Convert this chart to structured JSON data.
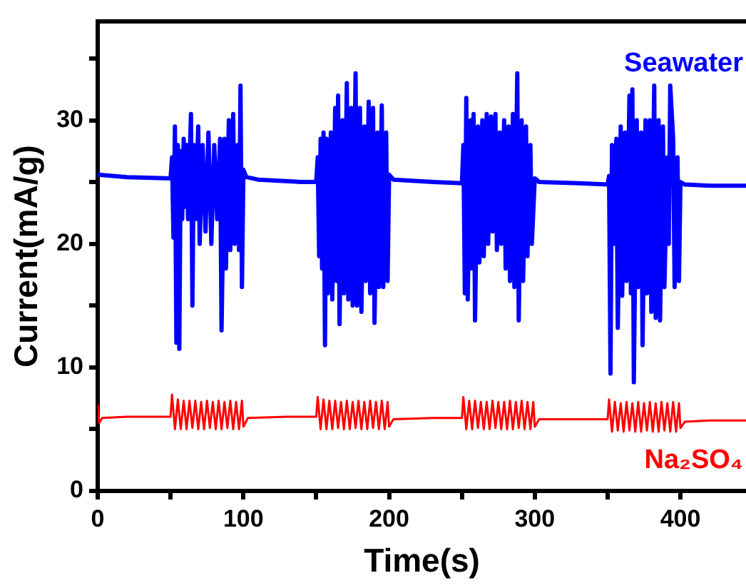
{
  "chart_data": {
    "type": "line",
    "xlabel": "Time(s)",
    "ylabel": "Current(mA/g)",
    "xlim": [
      0,
      445
    ],
    "xticks": [
      0,
      {
        "value": 50,
        "label": null
      },
      100,
      {
        "value": 150,
        "label": null
      },
      200,
      {
        "value": 250,
        "label": null
      },
      300,
      {
        "value": 350,
        "label": null
      },
      400
    ],
    "ylim": [
      0,
      38
    ],
    "yticks": [
      0,
      {
        "value": 5,
        "label": null
      },
      10,
      {
        "value": 15,
        "label": null
      },
      20,
      {
        "value": 25,
        "label": null
      },
      30,
      {
        "value": 35,
        "label": null
      }
    ],
    "grid": false,
    "legend": false,
    "marker": "none",
    "line_style": "solid",
    "series": [
      {
        "name": "Seawater",
        "color": "#0000ff",
        "x": [
          0,
          20,
          50,
          51,
          52,
          53,
          54,
          55,
          56,
          57,
          58,
          59,
          60,
          61,
          62,
          64,
          65,
          66,
          67,
          69,
          70,
          72,
          74,
          76,
          78,
          80,
          82,
          84,
          85,
          87,
          88,
          90,
          91,
          93,
          94,
          96,
          97,
          98,
          99,
          100,
          102,
          110,
          140,
          150,
          151,
          152,
          153,
          154,
          155,
          156,
          157,
          158,
          160,
          161,
          163,
          164,
          165,
          166,
          168,
          169,
          171,
          172,
          174,
          175,
          177,
          178,
          180,
          181,
          183,
          184,
          186,
          187,
          189,
          190,
          192,
          193,
          195,
          196,
          198,
          199,
          200,
          203,
          230,
          250,
          251,
          252,
          253,
          254,
          256,
          257,
          258,
          259,
          261,
          262,
          264,
          265,
          267,
          268,
          270,
          271,
          273,
          274,
          276,
          277,
          279,
          280,
          282,
          283,
          285,
          286,
          288,
          289,
          291,
          292,
          294,
          295,
          297,
          298,
          300,
          303,
          330,
          350,
          351,
          352,
          353,
          354,
          356,
          357,
          359,
          360,
          362,
          363,
          365,
          366,
          367,
          368,
          370,
          371,
          373,
          374,
          376,
          377,
          379,
          380,
          382,
          383,
          385,
          386,
          388,
          389,
          391,
          392,
          393,
          395,
          396,
          398,
          399,
          400,
          403,
          420,
          445
        ],
        "values": [
          25.6,
          25.4,
          25.3,
          27,
          20.5,
          29.5,
          12,
          28,
          11.5,
          27.5,
          22,
          28.5,
          23,
          28,
          22,
          30.5,
          15,
          28,
          22,
          29.5,
          20,
          28,
          21,
          29,
          20,
          28,
          22,
          28.5,
          13,
          28.5,
          18,
          30,
          19.5,
          30.5,
          20,
          28,
          19.5,
          32.8,
          16.5,
          26,
          25.4,
          25.2,
          25.0,
          25.0,
          27,
          19,
          28.5,
          18,
          29,
          11.8,
          28.5,
          16,
          29,
          15.5,
          31,
          17,
          32,
          13.5,
          30,
          16,
          33,
          15.5,
          31,
          15,
          33.8,
          15,
          31,
          14.5,
          29.5,
          17,
          31.5,
          16,
          31,
          13.6,
          29,
          16.5,
          31.2,
          16.5,
          29,
          17,
          25.6,
          25.2,
          25.0,
          24.9,
          28,
          16,
          31.8,
          15.5,
          30,
          18,
          30.5,
          13.8,
          29.5,
          18.5,
          30,
          19,
          30.5,
          20,
          30.3,
          21,
          30.5,
          19.5,
          29,
          20,
          30,
          18,
          29.5,
          17,
          30.5,
          16.5,
          33.8,
          13.8,
          30,
          17,
          29.5,
          19,
          28,
          20,
          25.3,
          25.0,
          24.9,
          24.8,
          25.5,
          9.5,
          28,
          20,
          28.5,
          13.2,
          29.5,
          15.8,
          29,
          17,
          32,
          16,
          32.5,
          8.8,
          30,
          16.5,
          29,
          11.8,
          30,
          16,
          30,
          14.5,
          32.8,
          14,
          30,
          13.8,
          29.5,
          16.5,
          27,
          20,
          32.8,
          28.5,
          16.5,
          27,
          17,
          25,
          24.8,
          24.7,
          24.7
        ]
      },
      {
        "name": "Na₂SO₄",
        "color": "#ff0000",
        "x": [
          0,
          1,
          3,
          20,
          50,
          51,
          53,
          55,
          57,
          59,
          61,
          63,
          65,
          67,
          69,
          71,
          73,
          75,
          77,
          79,
          81,
          83,
          85,
          87,
          89,
          91,
          93,
          95,
          97,
          99,
          100,
          103,
          130,
          150,
          151,
          153,
          155,
          157,
          159,
          161,
          163,
          165,
          167,
          169,
          171,
          173,
          175,
          177,
          179,
          181,
          183,
          185,
          187,
          189,
          191,
          193,
          195,
          197,
          199,
          200,
          203,
          230,
          250,
          251,
          253,
          255,
          257,
          259,
          261,
          263,
          265,
          267,
          269,
          271,
          273,
          275,
          277,
          279,
          281,
          283,
          285,
          287,
          289,
          291,
          293,
          295,
          297,
          299,
          300,
          303,
          330,
          350,
          351,
          353,
          355,
          357,
          359,
          361,
          363,
          365,
          367,
          369,
          371,
          373,
          375,
          377,
          379,
          381,
          383,
          385,
          387,
          389,
          391,
          393,
          395,
          397,
          399,
          400,
          403,
          420,
          445
        ],
        "values": [
          7,
          5.5,
          5.9,
          6.0,
          6.0,
          7.8,
          5.0,
          7.4,
          5.0,
          7.3,
          5.0,
          7.3,
          5.1,
          7.3,
          5.0,
          7.2,
          5.0,
          7.3,
          5.1,
          7.2,
          5.0,
          7.3,
          5.0,
          7.2,
          5.1,
          7.3,
          5.0,
          7.2,
          5.0,
          7.3,
          5.2,
          5.9,
          6.0,
          6.0,
          7.6,
          5.0,
          7.4,
          5.0,
          7.3,
          5.0,
          7.3,
          5.1,
          7.2,
          5.0,
          7.3,
          5.0,
          7.2,
          5.1,
          7.3,
          5.0,
          7.2,
          5.0,
          7.3,
          5.1,
          7.2,
          5.0,
          7.3,
          5.0,
          7.2,
          5.2,
          5.8,
          5.9,
          5.9,
          7.6,
          5.0,
          7.3,
          5.0,
          7.3,
          5.1,
          7.2,
          5.0,
          7.2,
          5.0,
          7.3,
          5.1,
          7.2,
          5.0,
          7.2,
          5.0,
          7.3,
          5.0,
          7.2,
          5.1,
          7.3,
          5.0,
          7.2,
          5.0,
          7.2,
          5.2,
          5.8,
          5.8,
          5.8,
          7.4,
          4.8,
          7.2,
          4.9,
          7.1,
          4.8,
          7.2,
          4.9,
          7.1,
          4.8,
          7.2,
          4.8,
          7.1,
          4.9,
          7.2,
          4.8,
          7.1,
          4.8,
          7.2,
          4.9,
          7.1,
          4.8,
          7.2,
          4.8,
          7.1,
          5.1,
          5.6,
          5.7,
          5.7
        ]
      }
    ]
  }
}
